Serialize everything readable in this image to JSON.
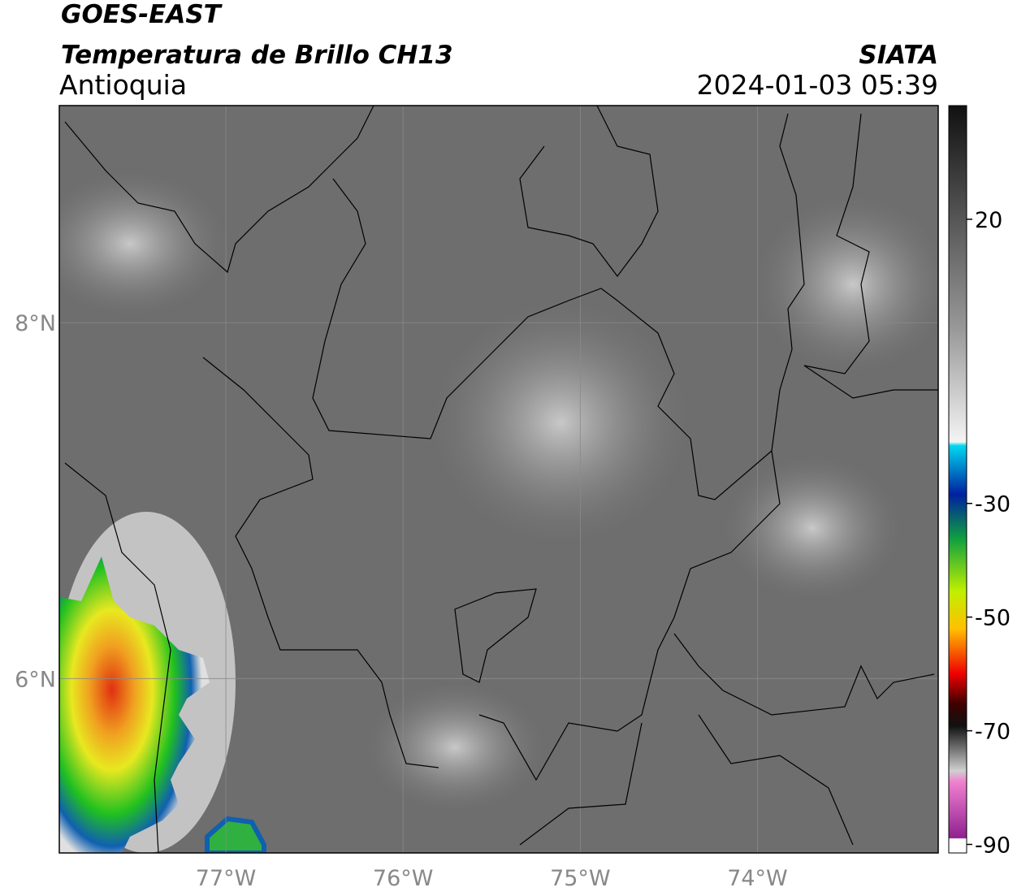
{
  "header": {
    "title": "GOES-EAST",
    "product": "Temperatura de Brillo CH13",
    "region": "Antioquia",
    "source": "SIATA",
    "timestamp": "2024-01-03 05:39"
  },
  "map": {
    "lonlim": [
      -77.94,
      -72.98
    ],
    "latlim": [
      5.02,
      9.22
    ],
    "lonticks": [
      {
        "value": -77,
        "label": "77°W"
      },
      {
        "value": -76,
        "label": "76°W"
      },
      {
        "value": -75,
        "label": "75°W"
      },
      {
        "value": -74,
        "label": "74°W"
      }
    ],
    "latticks": [
      {
        "value": 8,
        "label": "8°N"
      },
      {
        "value": 6,
        "label": "6°N"
      }
    ]
  },
  "colorbar": {
    "lim": [
      -91.5,
      40
    ],
    "ticks": [
      20,
      -30,
      -50,
      -70,
      -90
    ]
  }
}
